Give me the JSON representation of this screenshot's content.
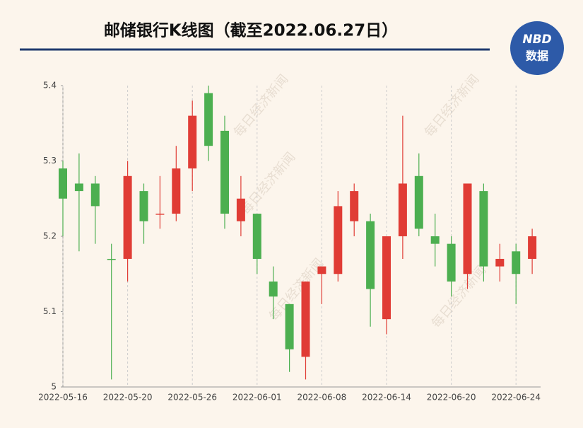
{
  "chart_data": {
    "type": "candlestick",
    "title": "邮储银行K线图（截至2022.06.27日）",
    "logo": {
      "top": "NBD",
      "bottom": "数据"
    },
    "watermark": "每日经济新闻",
    "categories": [
      "2022-05-16",
      null,
      null,
      null,
      "2022-05-20",
      null,
      null,
      null,
      "2022-05-26",
      null,
      null,
      null,
      "2022-06-01",
      null,
      null,
      null,
      "2022-06-08",
      null,
      null,
      null,
      "2022-06-14",
      null,
      null,
      null,
      "2022-06-20",
      null,
      null,
      null,
      "2022-06-24",
      null
    ],
    "open": [
      5.29,
      5.27,
      5.27,
      5.17,
      5.17,
      5.26,
      5.23,
      5.23,
      5.29,
      5.39,
      5.34,
      5.22,
      5.23,
      5.14,
      5.11,
      5.04,
      5.15,
      5.15,
      5.22,
      5.22,
      5.09,
      5.2,
      5.28,
      5.2,
      5.19,
      5.15,
      5.26,
      5.16,
      5.18,
      5.17
    ],
    "high": [
      5.3,
      5.31,
      5.28,
      5.19,
      5.3,
      5.27,
      5.28,
      5.32,
      5.38,
      5.4,
      5.36,
      5.28,
      5.23,
      5.16,
      5.11,
      5.14,
      5.16,
      5.26,
      5.27,
      5.23,
      5.2,
      5.36,
      5.31,
      5.23,
      5.2,
      5.27,
      5.27,
      5.19,
      5.19,
      5.21
    ],
    "low": [
      5.2,
      5.18,
      5.19,
      5.01,
      5.14,
      5.19,
      5.21,
      5.22,
      5.26,
      5.3,
      5.21,
      5.2,
      5.15,
      5.09,
      5.02,
      5.01,
      5.11,
      5.14,
      5.2,
      5.08,
      5.07,
      5.17,
      5.2,
      5.16,
      5.12,
      5.13,
      5.14,
      5.14,
      5.11,
      5.15
    ],
    "close": [
      5.25,
      5.26,
      5.24,
      5.17,
      5.28,
      5.22,
      5.23,
      5.29,
      5.36,
      5.32,
      5.23,
      5.25,
      5.17,
      5.12,
      5.05,
      5.14,
      5.16,
      5.24,
      5.26,
      5.13,
      5.2,
      5.27,
      5.21,
      5.19,
      5.14,
      5.27,
      5.16,
      5.17,
      5.15,
      5.2
    ],
    "up_color": "#e03c35",
    "down_color": "#4caf50",
    "ylim": [
      5,
      5.4
    ],
    "yticks": [
      5,
      5.1,
      5.2,
      5.3,
      5.4
    ]
  }
}
